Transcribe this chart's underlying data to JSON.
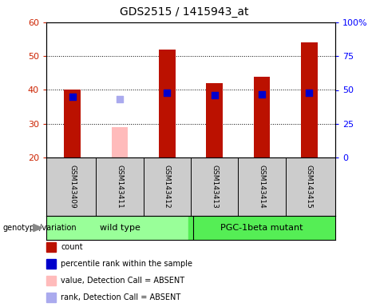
{
  "title": "GDS2515 / 1415943_at",
  "samples": [
    "GSM143409",
    "GSM143411",
    "GSM143412",
    "GSM143413",
    "GSM143414",
    "GSM143415"
  ],
  "count_values": [
    40,
    29,
    52,
    42,
    44,
    54
  ],
  "percentile_values": [
    45,
    43,
    48,
    46,
    47,
    48
  ],
  "absent": [
    false,
    true,
    false,
    false,
    false,
    false
  ],
  "ylim_left": [
    20,
    60
  ],
  "ylim_right": [
    0,
    100
  ],
  "yticks_left": [
    20,
    30,
    40,
    50,
    60
  ],
  "yticks_right": [
    0,
    25,
    50,
    75,
    100
  ],
  "ytick_labels_right": [
    "0",
    "25",
    "50",
    "75",
    "100%"
  ],
  "bar_color_present": "#bb1100",
  "bar_color_absent": "#ffbbbb",
  "dot_color_present": "#0000cc",
  "dot_color_absent": "#aaaaee",
  "bar_width": 0.35,
  "group_labels": [
    "wild type",
    "PGC-1beta mutant"
  ],
  "group_ranges": [
    [
      0,
      3
    ],
    [
      3,
      6
    ]
  ],
  "group_color_wt": "#99ff99",
  "group_color_mut": "#55ee55",
  "genotype_label": "genotype/variation",
  "legend_items": [
    {
      "label": "count",
      "color": "#bb1100"
    },
    {
      "label": "percentile rank within the sample",
      "color": "#0000cc"
    },
    {
      "label": "value, Detection Call = ABSENT",
      "color": "#ffbbbb"
    },
    {
      "label": "rank, Detection Call = ABSENT",
      "color": "#aaaaee"
    }
  ],
  "xlabel_bg": "#cccccc",
  "fig_bg_color": "#ffffff",
  "plot_bg_color": "#ffffff"
}
